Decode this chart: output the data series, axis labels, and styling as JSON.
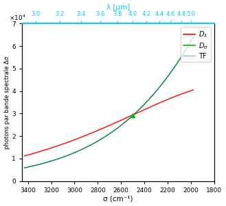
{
  "sigma_min": 1800,
  "sigma_max": 3450,
  "ylim": [
    0,
    70000
  ],
  "ytick_vals": [
    0,
    10000,
    20000,
    30000,
    40000,
    50000,
    60000,
    70000
  ],
  "ytick_labels": [
    "0",
    "1",
    "2",
    "3",
    "4",
    "5",
    "6",
    "7"
  ],
  "xticks_bottom": [
    3400,
    3200,
    3000,
    2800,
    2600,
    2400,
    2200,
    2000,
    1800
  ],
  "lambda_ticks_um": [
    3.0,
    3.2,
    3.4,
    3.6,
    3.8,
    4.0,
    4.2,
    4.4,
    4.6,
    4.8,
    5.0
  ],
  "xlabel_bottom": "σ (cm⁻¹)",
  "xlabel_top": "λ [µm]",
  "ylabel": "photons par bande spectrale Δσ",
  "color_D_lambda": "#ff0000",
  "color_D_sigma": "#00bb00",
  "color_TF": "#0000dd",
  "color_top_axis": "#00ccff",
  "background_color": "#ffffff",
  "T": 600,
  "scale_D_sigma": 64000,
  "scale_D_lambda": 40500,
  "green_marker_sigma": 2500,
  "sigma_data_start": 1980,
  "sigma_data_end": 3430
}
